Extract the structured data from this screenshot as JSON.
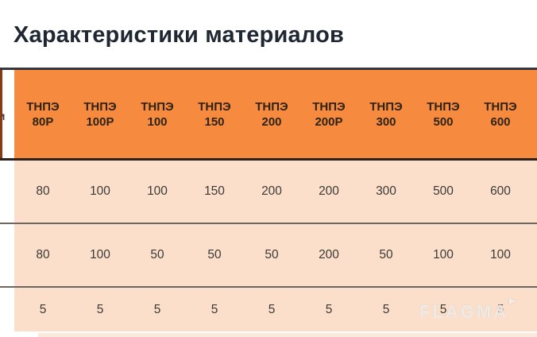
{
  "page": {
    "title": "Характеристики материалов"
  },
  "table": {
    "cut_left_column_text_fragment": "м",
    "columns": [
      "ТНПЭ\n80Р",
      "ТНПЭ\n100Р",
      "ТНПЭ\n100",
      "ТНПЭ\n150",
      "ТНПЭ\n200",
      "ТНПЭ\n200Р",
      "ТНПЭ\n300",
      "ТНПЭ\n500",
      "ТНПЭ\n600"
    ],
    "rows": [
      {
        "values": [
          "80",
          "100",
          "100",
          "150",
          "200",
          "200",
          "300",
          "500",
          "600"
        ]
      },
      {
        "values": [
          "80",
          "100",
          "50",
          "50",
          "50",
          "200",
          "50",
          "100",
          "100"
        ]
      },
      {
        "values": [
          "5",
          "5",
          "5",
          "5",
          "5",
          "5",
          "5",
          "5",
          "5"
        ]
      }
    ]
  },
  "watermark": {
    "text": "FLAGMA"
  },
  "colors": {
    "header_bg": "#F68A3E",
    "header_text": "#2F2315",
    "row_bg": "#FBDFCA",
    "partial_row_bg": "#FBE9DC",
    "left_edge_sliver": "#8A3A12",
    "title_text": "#1F2733",
    "top_border": "#34353D",
    "header_border": "#2B211A",
    "row_separator": "#6F675F"
  }
}
